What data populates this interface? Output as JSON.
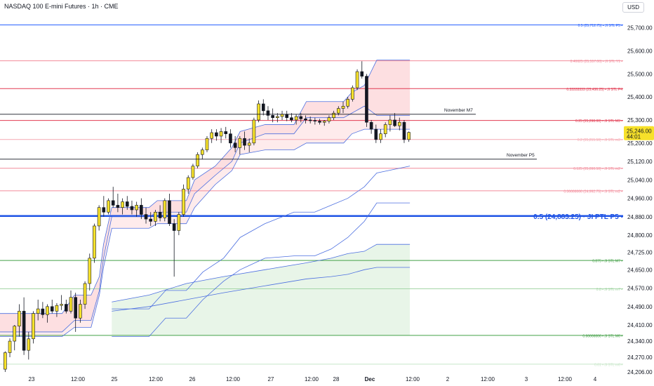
{
  "header": {
    "title": "NASDAQ 100 E-mini Futures · 1h · CME",
    "currency": "USD"
  },
  "chart_data": {
    "type": "candlestick",
    "ylim": [
      24200,
      25760
    ],
    "price_ticks": [
      "25,700.00",
      "25,600.00",
      "25,500.00",
      "25,400.00",
      "25,300.00",
      "25,200.00",
      "25,120.00",
      "25,040.00",
      "24,960.00",
      "24,880.00",
      "24,800.00",
      "24,725.00",
      "24,650.00",
      "24,570.00",
      "24,490.00",
      "24,410.00",
      "24,340.00",
      "24,270.00",
      "24,206.00"
    ],
    "x_ticks": [
      "23",
      "12:00",
      "25",
      "12:00",
      "26",
      "12:00",
      "27",
      "12:00",
      "28",
      "Dec",
      "12:00",
      "2",
      "12:00",
      "3",
      "12:00",
      "4"
    ],
    "current_price": {
      "value": 25246,
      "label": "25,246.00",
      "countdown": "44:01",
      "color": "#f7e12a"
    },
    "series": [
      {
        "name": "candles",
        "values": [
          [
            24218,
            24296,
            24206,
            24290
          ],
          [
            24290,
            24352,
            24270,
            24340
          ],
          [
            24340,
            24410,
            24300,
            24405
          ],
          [
            24405,
            24500,
            24360,
            24470
          ],
          [
            24470,
            24530,
            24280,
            24300
          ],
          [
            24300,
            24380,
            24260,
            24350
          ],
          [
            24350,
            24470,
            24330,
            24460
          ],
          [
            24460,
            24520,
            24430,
            24480
          ],
          [
            24480,
            24510,
            24440,
            24455
          ],
          [
            24455,
            24500,
            24420,
            24490
          ],
          [
            24490,
            24520,
            24460,
            24470
          ],
          [
            24470,
            24505,
            24445,
            24495
          ],
          [
            24495,
            24540,
            24475,
            24500
          ],
          [
            24500,
            24520,
            24460,
            24470
          ],
          [
            24470,
            24560,
            24460,
            24530
          ],
          [
            24530,
            24550,
            24380,
            24440
          ],
          [
            24440,
            24520,
            24420,
            24500
          ],
          [
            24500,
            24600,
            24480,
            24590
          ],
          [
            24590,
            24720,
            24560,
            24700
          ],
          [
            24700,
            24850,
            24680,
            24840
          ],
          [
            24840,
            24930,
            24820,
            24920
          ],
          [
            24920,
            24970,
            24880,
            24900
          ],
          [
            24900,
            24960,
            24890,
            24950
          ],
          [
            24950,
            25010,
            24920,
            24930
          ],
          [
            24930,
            24980,
            24900,
            24920
          ],
          [
            24920,
            24960,
            24890,
            24945
          ],
          [
            24945,
            24970,
            24910,
            24925
          ],
          [
            24925,
            24950,
            24890,
            24910
          ],
          [
            24910,
            24945,
            24880,
            24930
          ],
          [
            24930,
            24960,
            24870,
            24890
          ],
          [
            24890,
            24920,
            24850,
            24870
          ],
          [
            24870,
            24900,
            24840,
            24860
          ],
          [
            24860,
            24910,
            24840,
            24900
          ],
          [
            24900,
            24930,
            24860,
            24875
          ],
          [
            24875,
            24960,
            24860,
            24950
          ],
          [
            24950,
            24980,
            24840,
            24850
          ],
          [
            24850,
            24870,
            24620,
            24820
          ],
          [
            24820,
            24900,
            24800,
            24890
          ],
          [
            24890,
            25020,
            24880,
            25000
          ],
          [
            25000,
            25060,
            24980,
            25050
          ],
          [
            25050,
            25110,
            25040,
            25100
          ],
          [
            25100,
            25160,
            25090,
            25150
          ],
          [
            25150,
            25180,
            25130,
            25170
          ],
          [
            25170,
            25230,
            25160,
            25220
          ],
          [
            25220,
            25260,
            25200,
            25245
          ],
          [
            25245,
            25260,
            25210,
            25230
          ],
          [
            25230,
            25265,
            25200,
            25250
          ],
          [
            25250,
            25270,
            25220,
            25240
          ],
          [
            25240,
            25260,
            25180,
            25200
          ],
          [
            25200,
            25230,
            25160,
            25180
          ],
          [
            25180,
            25230,
            25150,
            25220
          ],
          [
            25220,
            25250,
            25170,
            25190
          ],
          [
            25190,
            25220,
            25160,
            25200
          ],
          [
            25200,
            25310,
            25190,
            25300
          ],
          [
            25300,
            25385,
            25290,
            25370
          ],
          [
            25370,
            25390,
            25320,
            25340
          ],
          [
            25340,
            25360,
            25300,
            25320
          ],
          [
            25320,
            25350,
            25290,
            25310
          ],
          [
            25310,
            25330,
            25290,
            25315
          ],
          [
            25315,
            25340,
            25300,
            25325
          ],
          [
            25325,
            25340,
            25295,
            25310
          ],
          [
            25310,
            25330,
            25290,
            25300
          ],
          [
            25300,
            25325,
            25280,
            25315
          ],
          [
            25315,
            25330,
            25290,
            25305
          ],
          [
            25305,
            25320,
            25285,
            25300
          ],
          [
            25300,
            25315,
            25285,
            25298
          ],
          [
            25298,
            25310,
            25280,
            25295
          ],
          [
            25295,
            25305,
            25280,
            25290
          ],
          [
            25290,
            25300,
            25275,
            25295
          ],
          [
            25295,
            25320,
            25285,
            25310
          ],
          [
            25310,
            25340,
            25300,
            25330
          ],
          [
            25330,
            25360,
            25320,
            25350
          ],
          [
            25350,
            25380,
            25330,
            25360
          ],
          [
            25360,
            25400,
            25350,
            25390
          ],
          [
            25390,
            25450,
            25380,
            25440
          ],
          [
            25440,
            25520,
            25430,
            25510
          ],
          [
            25510,
            25555,
            25480,
            25490
          ],
          [
            25490,
            25500,
            25270,
            25290
          ],
          [
            25290,
            25300,
            25240,
            25260
          ],
          [
            25260,
            25280,
            25200,
            25215
          ],
          [
            25215,
            25260,
            25200,
            25240
          ],
          [
            25240,
            25290,
            25225,
            25280
          ],
          [
            25280,
            25320,
            25250,
            25300
          ],
          [
            25300,
            25330,
            25270,
            25275
          ],
          [
            25275,
            25310,
            25255,
            25290
          ],
          [
            25290,
            25300,
            25200,
            25215
          ],
          [
            25215,
            25250,
            25205,
            25246
          ]
        ]
      },
      {
        "name": "ladder_outer_top",
        "values": [
          [
            0,
            24460
          ],
          [
            0.15,
            24460
          ],
          [
            0.18,
            24540
          ],
          [
            0.22,
            24540
          ],
          [
            0.24,
            24620
          ],
          [
            0.25,
            24760
          ],
          [
            0.27,
            24920
          ],
          [
            0.36,
            24920
          ],
          [
            0.38,
            24950
          ],
          [
            0.45,
            24950
          ],
          [
            0.47,
            25040
          ],
          [
            0.52,
            25100
          ],
          [
            0.56,
            25180
          ],
          [
            0.58,
            25250
          ],
          [
            0.64,
            25280
          ],
          [
            0.71,
            25280
          ],
          [
            0.74,
            25380
          ],
          [
            0.83,
            25380
          ],
          [
            0.85,
            25420
          ],
          [
            0.88,
            25450
          ],
          [
            0.91,
            25560
          ],
          [
            0.99,
            25560
          ]
        ]
      },
      {
        "name": "ladder_inner",
        "values": [
          [
            0,
            24380
          ],
          [
            0.15,
            24380
          ],
          [
            0.18,
            24430
          ],
          [
            0.22,
            24430
          ],
          [
            0.24,
            24560
          ],
          [
            0.25,
            24700
          ],
          [
            0.27,
            24880
          ],
          [
            0.36,
            24880
          ],
          [
            0.38,
            24900
          ],
          [
            0.45,
            24900
          ],
          [
            0.47,
            24980
          ],
          [
            0.52,
            25060
          ],
          [
            0.56,
            25120
          ],
          [
            0.58,
            25200
          ],
          [
            0.64,
            25240
          ],
          [
            0.71,
            25240
          ],
          [
            0.74,
            25310
          ],
          [
            0.83,
            25310
          ],
          [
            0.85,
            25330
          ],
          [
            0.88,
            25360
          ],
          [
            0.91,
            25320
          ],
          [
            0.99,
            25320
          ]
        ]
      },
      {
        "name": "ladder_lower",
        "values": [
          [
            0,
            24360
          ],
          [
            0.15,
            24360
          ],
          [
            0.18,
            24400
          ],
          [
            0.22,
            24400
          ],
          [
            0.24,
            24540
          ],
          [
            0.25,
            24660
          ],
          [
            0.27,
            24830
          ],
          [
            0.36,
            24830
          ],
          [
            0.38,
            24850
          ],
          [
            0.45,
            24850
          ],
          [
            0.47,
            24920
          ],
          [
            0.52,
            25020
          ],
          [
            0.56,
            25080
          ],
          [
            0.58,
            25150
          ],
          [
            0.64,
            25170
          ],
          [
            0.71,
            25170
          ],
          [
            0.74,
            25200
          ],
          [
            0.83,
            25200
          ],
          [
            0.85,
            25240
          ],
          [
            0.88,
            25260
          ],
          [
            0.91,
            25260
          ],
          [
            0.99,
            25260
          ]
        ]
      },
      {
        "name": "ladder_bottom",
        "values": [
          [
            0.27,
            24480
          ],
          [
            0.36,
            24480
          ],
          [
            0.4,
            24560
          ],
          [
            0.45,
            24560
          ],
          [
            0.49,
            24640
          ],
          [
            0.54,
            24700
          ],
          [
            0.58,
            24790
          ],
          [
            0.64,
            24850
          ],
          [
            0.71,
            24900
          ],
          [
            0.76,
            24900
          ],
          [
            0.8,
            24930
          ],
          [
            0.84,
            24960
          ],
          [
            0.88,
            25010
          ],
          [
            0.91,
            25070
          ],
          [
            0.99,
            25100
          ]
        ]
      },
      {
        "name": "ladder_floor",
        "values": [
          [
            0.27,
            24360
          ],
          [
            0.36,
            24360
          ],
          [
            0.4,
            24440
          ],
          [
            0.45,
            24440
          ],
          [
            0.49,
            24520
          ],
          [
            0.54,
            24600
          ],
          [
            0.58,
            24650
          ],
          [
            0.64,
            24700
          ],
          [
            0.71,
            24710
          ],
          [
            0.76,
            24710
          ],
          [
            0.8,
            24740
          ],
          [
            0.84,
            24790
          ],
          [
            0.88,
            24860
          ],
          [
            0.91,
            24940
          ],
          [
            0.99,
            24940
          ]
        ]
      },
      {
        "name": "ladder_green_a",
        "values": [
          [
            0.27,
            24510
          ],
          [
            0.36,
            24540
          ],
          [
            0.45,
            24590
          ],
          [
            0.54,
            24620
          ],
          [
            0.64,
            24650
          ],
          [
            0.74,
            24680
          ],
          [
            0.8,
            24700
          ],
          [
            0.84,
            24720
          ],
          [
            0.88,
            24730
          ],
          [
            0.91,
            24760
          ],
          [
            0.99,
            24760
          ]
        ]
      },
      {
        "name": "ladder_green_b",
        "values": [
          [
            0.27,
            24470
          ],
          [
            0.36,
            24490
          ],
          [
            0.45,
            24520
          ],
          [
            0.54,
            24550
          ],
          [
            0.64,
            24580
          ],
          [
            0.74,
            24610
          ],
          [
            0.8,
            24620
          ],
          [
            0.84,
            24630
          ],
          [
            0.88,
            24650
          ],
          [
            0.91,
            24660
          ],
          [
            0.99,
            24660
          ]
        ]
      }
    ],
    "levels": [
      {
        "y": 25712.75,
        "label": "0.5 (25,712.75) • JI STL P5 •",
        "color": "#2962ff"
      },
      {
        "y": 25557,
        "label": "0.40625 (25,557.00) • JI STL Y1 •",
        "color": "#f28b9a"
      },
      {
        "y": 25436.25,
        "label": "0.33333333 (25,436.25) • JI STL P4",
        "color": "#e23b52"
      },
      {
        "y": 25298,
        "label": "0.25 (25,298.00) • JI STL M3 •",
        "color": "#e23b52"
      },
      {
        "y": 25215.5,
        "label": "0.2 (25,215.50) • JI STL m3 •",
        "color": "#f5a7b1"
      },
      {
        "y": 25090.5,
        "label": "0.125 (25,090.50) • JI STL m2 •",
        "color": "#f28b9a"
      },
      {
        "y": 24992.75,
        "label": "0.06666666 (24,992.75) • JI STL m2 •",
        "color": "#f28b9a"
      },
      {
        "y": 24883.25,
        "label": "0.5 (24,883.25) · JI PTL P5 •",
        "color": "#1e53e5",
        "bold": true
      },
      {
        "y": 24690,
        "label": "0.875 • JI STL M7 •",
        "color": "#43a047"
      },
      {
        "y": 24567,
        "label": "0.8 • JI STL m7 •",
        "color": "#a5d6a7"
      },
      {
        "y": 24365,
        "label": "0.66666666 • JI STL M6 •",
        "color": "#43a047"
      },
      {
        "y": 24240,
        "label": "0.61 • JI STL m6 •",
        "color": "#c8e6c9"
      }
    ],
    "annotations": [
      {
        "text": "November M7",
        "y": 25325
      },
      {
        "text": "November P5",
        "y": 25130
      }
    ],
    "grid": false
  }
}
